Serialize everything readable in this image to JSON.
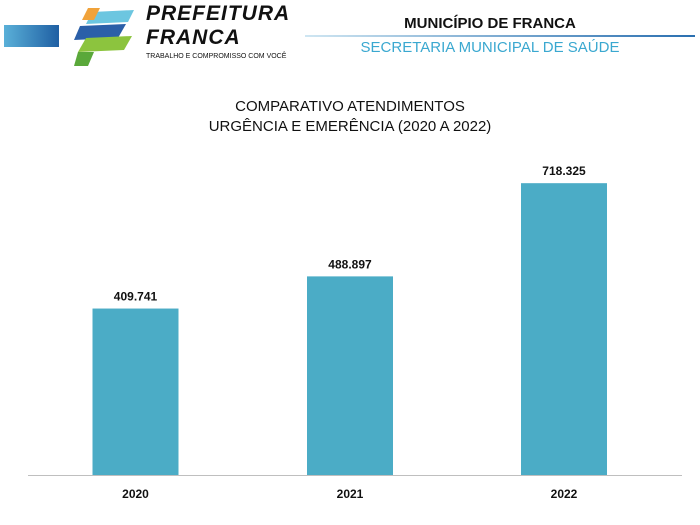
{
  "header": {
    "logo_text": "PREFEITURA FRANCA",
    "logo_tagline": "TRABALHO E COMPROMISSO COM VOCÊ",
    "municipality": "MUNICÍPIO DE FRANCA",
    "secretariat": "SECRETARIA MUNICIPAL DE SAÚDE"
  },
  "chart_data": {
    "type": "bar",
    "title_line1": "COMPARATIVO ATENDIMENTOS",
    "title_line2": "URGÊNCIA E EMERÊNCIA (2020 A 2022)",
    "categories": [
      "2020",
      "2021",
      "2022"
    ],
    "values": [
      409741,
      488897,
      718325
    ],
    "labels": [
      "409.741",
      "488.897",
      "718.325"
    ],
    "xlabel": "",
    "ylabel": "",
    "ylim": [
      0,
      800000
    ],
    "grid": false,
    "bar_color": "#4bacc6"
  }
}
